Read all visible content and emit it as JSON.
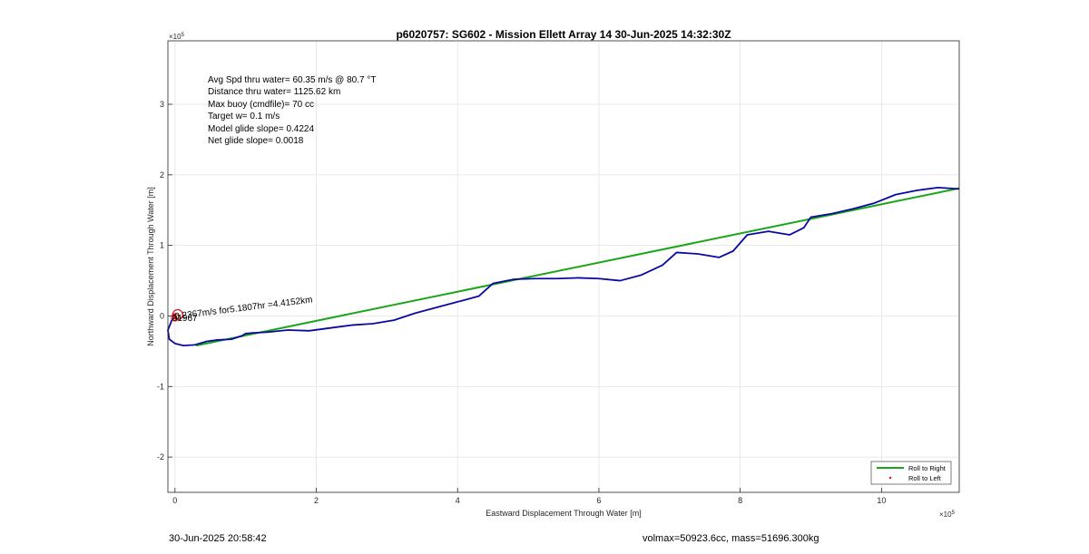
{
  "chart_data": {
    "type": "line",
    "title": "p6020757: SG602 - Mission Ellett Array 14 30-Jun-2025 14:32:30Z",
    "xlabel": "Eastward Displacement Through Water [m]",
    "ylabel": "Northward Displacement Through Water [m]",
    "x_exponent": "×10",
    "x_exponent_power": "5",
    "y_exponent": "×10",
    "y_exponent_power": "5",
    "xlim": [
      -0.1,
      11.1
    ],
    "ylim": [
      -2.5,
      3.9
    ],
    "xticks": [
      0,
      2,
      4,
      6,
      8,
      10
    ],
    "xtick_labels": [
      "0",
      "2",
      "4",
      "6",
      "8",
      "10"
    ],
    "yticks": [
      -2,
      -1,
      0,
      1,
      2,
      3
    ],
    "ytick_labels": [
      "-2",
      "-1",
      "0",
      "1",
      "2",
      "3"
    ],
    "grid": true,
    "legend_placement": "bottom-right",
    "stats": [
      "Avg Spd thru water= 60.35 m/s @  80.7 °T",
      "Distance thru water= 1125.62 km",
      "Max buoy (cmdfile)= 70 cc",
      "Target w= 0.1 m/s",
      "Model glide slope= 0.4224",
      "Net glide slope= 0.0018"
    ],
    "annotation": {
      "text": "0.2367m/s for5.1807hr =4.4152km",
      "overlay_text": "01967",
      "x": 0.0,
      "y": -0.02
    },
    "series": [
      {
        "name": "Roll to Right",
        "color": "#1aa51a",
        "x": [
          0.3,
          11.1
        ],
        "y": [
          -0.42,
          1.81
        ]
      },
      {
        "name": "Roll to Left",
        "color": "#e01010",
        "marker_only": true,
        "x": [
          0.0,
          0.02,
          -0.01
        ],
        "y": [
          0.0,
          -0.03,
          0.02
        ]
      },
      {
        "color": "#0a0aa0",
        "x": [
          0.0,
          -0.04,
          -0.1,
          -0.08,
          0.0,
          0.12,
          0.28,
          0.45,
          0.6,
          0.8,
          0.95,
          1.0,
          1.1,
          1.3,
          1.6,
          1.9,
          2.2,
          2.5,
          2.8,
          3.1,
          3.4,
          3.7,
          4.0,
          4.3,
          4.5,
          4.8,
          5.1,
          5.4,
          5.7,
          6.0,
          6.3,
          6.6,
          6.9,
          7.1,
          7.4,
          7.7,
          7.9,
          8.1,
          8.4,
          8.7,
          8.9,
          9.0,
          9.3,
          9.6,
          9.9,
          10.2,
          10.5,
          10.8,
          11.1
        ],
        "y": [
          -0.02,
          -0.05,
          -0.2,
          -0.33,
          -0.39,
          -0.42,
          -0.41,
          -0.36,
          -0.34,
          -0.33,
          -0.28,
          -0.25,
          -0.24,
          -0.23,
          -0.2,
          -0.21,
          -0.17,
          -0.13,
          -0.11,
          -0.06,
          0.04,
          0.12,
          0.2,
          0.28,
          0.46,
          0.52,
          0.53,
          0.53,
          0.54,
          0.53,
          0.5,
          0.58,
          0.72,
          0.9,
          0.88,
          0.83,
          0.92,
          1.15,
          1.2,
          1.15,
          1.25,
          1.4,
          1.45,
          1.52,
          1.6,
          1.72,
          1.78,
          1.82,
          1.8
        ]
      }
    ]
  },
  "footer": {
    "timestamp": "30-Jun-2025 20:58:42",
    "summary": "volmax=50923.6cc, mass=51696.300kg"
  }
}
